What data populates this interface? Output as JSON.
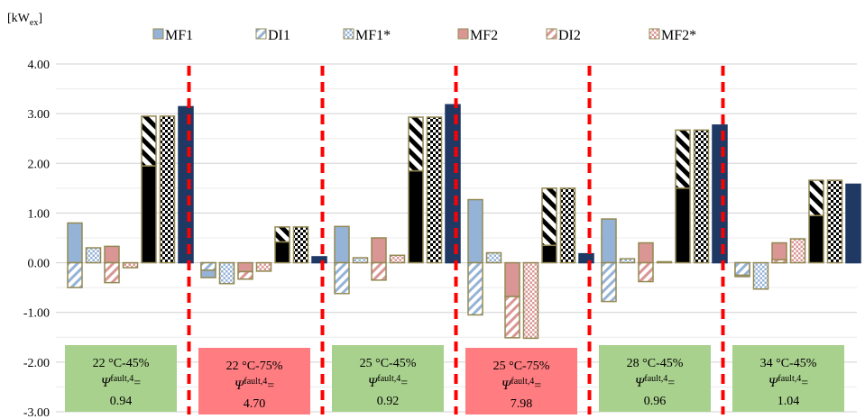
{
  "chart_data": {
    "type": "bar",
    "ylabel_main": "[kW",
    "ylabel_sub": "ex",
    "ylabel_end": "]",
    "ylim": [
      -3,
      4
    ],
    "yticks": [
      4.0,
      3.0,
      2.0,
      1.0,
      0.0,
      -1.0,
      -2.0,
      -3.0
    ],
    "ytick_labels": [
      "4.00",
      "3.00",
      "2.00",
      "1.00",
      "0.00",
      "-1.00",
      "-2.00",
      "-3.00"
    ],
    "grid": true,
    "legend_position": "top",
    "legend": [
      {
        "key": "MF1",
        "label": "MF1",
        "color": "#95b3d7",
        "pattern": "solid"
      },
      {
        "key": "DI1",
        "label": "DI1",
        "color": "#95b3d7",
        "pattern": "hatch"
      },
      {
        "key": "MF1s",
        "label": "MF1*",
        "color": "#95b3d7",
        "pattern": "dots"
      },
      {
        "key": "MF2",
        "label": "MF2",
        "color": "#da9694",
        "pattern": "solid"
      },
      {
        "key": "DI2",
        "label": "DI2",
        "color": "#da9694",
        "pattern": "hatch"
      },
      {
        "key": "MF2s",
        "label": "MF2*",
        "color": "#da9694",
        "pattern": "dots"
      }
    ],
    "groups": [
      {
        "condition": "22 °C-45%",
        "psi_symbol": "Ψ",
        "psi_sup": "fault,4",
        "psi_eq": "=",
        "psi_value": "0.94",
        "status": "ok",
        "MF1": 0.8,
        "DI1": -0.5,
        "MF1s": 0.3,
        "MF2": 0.33,
        "DI2": -0.4,
        "MF2s": -0.1,
        "stack_bottom": 1.95,
        "stack_top": 2.95,
        "dotted": 2.95,
        "total": 3.14
      },
      {
        "condition": "22 °C-75%",
        "psi_symbol": "Ψ",
        "psi_sup": "fault,4",
        "psi_eq": "=",
        "psi_value": "4.70",
        "status": "bad",
        "MF1": -0.3,
        "DI1": -0.15,
        "MF1s": -0.42,
        "MF2": -0.18,
        "DI2": -0.15,
        "MF2s": -0.17,
        "stack_bottom": 0.42,
        "stack_top": 0.72,
        "dotted": 0.72,
        "total": 0.12
      },
      {
        "condition": "25 °C-45%",
        "psi_symbol": "Ψ",
        "psi_sup": "fault,4",
        "psi_eq": "=",
        "psi_value": "0.92",
        "status": "ok",
        "MF1": 0.73,
        "DI1": -0.62,
        "MF1s": 0.1,
        "MF2": 0.5,
        "DI2": -0.35,
        "MF2s": 0.15,
        "stack_bottom": 1.85,
        "stack_top": 2.93,
        "dotted": 2.93,
        "total": 3.18
      },
      {
        "condition": "25 °C-75%",
        "psi_symbol": "Ψ",
        "psi_sup": "fault,4",
        "psi_eq": "=",
        "psi_value": "7.98",
        "status": "bad",
        "MF1": 1.27,
        "DI1": -1.05,
        "MF1s": 0.2,
        "MF2": -0.68,
        "DI2": -0.83,
        "MF2s": -1.52,
        "stack_bottom": 0.35,
        "stack_top": 1.5,
        "dotted": 1.5,
        "total": 0.18
      },
      {
        "condition": "28 °C-45%",
        "psi_symbol": "Ψ",
        "psi_sup": "fault,4",
        "psi_eq": "=",
        "psi_value": "0.96",
        "status": "ok",
        "MF1": 0.88,
        "DI1": -0.78,
        "MF1s": 0.08,
        "MF2": 0.4,
        "DI2": -0.38,
        "MF2s": 0.02,
        "stack_bottom": 1.5,
        "stack_top": 2.67,
        "dotted": 2.67,
        "total": 2.77
      },
      {
        "condition": "34 °C-45%",
        "psi_symbol": "Ψ",
        "psi_sup": "fault,4",
        "psi_eq": "=",
        "psi_value": "1.04",
        "status": "ok",
        "MF1": -0.28,
        "DI1": -0.25,
        "MF1s": -0.53,
        "MF2": 0.4,
        "DI2": 0.06,
        "MF2s": 0.48,
        "stack_bottom": 0.95,
        "stack_top": 1.66,
        "dotted": 1.66,
        "total": 1.58
      }
    ],
    "colors": {
      "blue": "#95b3d7",
      "red": "#da9694",
      "navy": "#1f3864",
      "outline": "#938953",
      "divider": "#ff0000",
      "ok_box": "#a9d18e",
      "bad_box": "#ff7c80",
      "grid": "#d9d9d9"
    }
  }
}
